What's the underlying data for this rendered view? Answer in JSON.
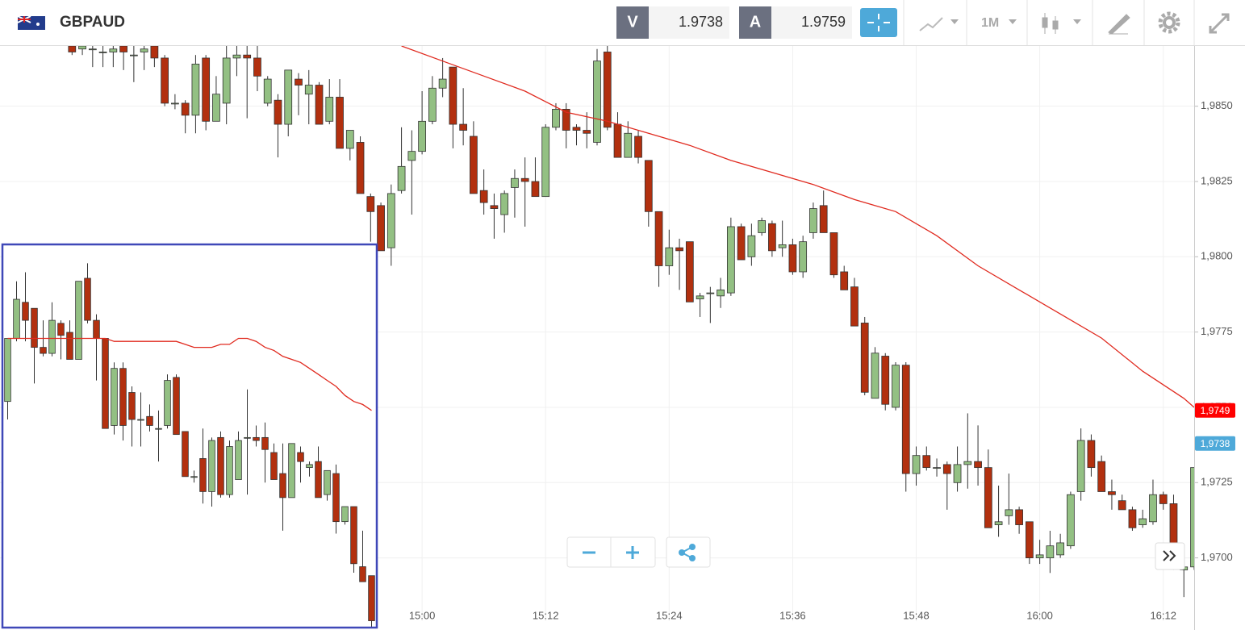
{
  "toolbar": {
    "symbol": "GBPAUD",
    "sell_label": "V",
    "sell_price": 1.9738,
    "buy_label": "A",
    "buy_price": 1.9759,
    "timeframe": "1M"
  },
  "chart_data": [
    {
      "type": "candlestick",
      "x": [
        "14:26",
        "14:27",
        "14:28",
        "14:29",
        "14:30",
        "14:31",
        "14:32",
        "14:33",
        "14:34",
        "14:35",
        "14:36",
        "14:37",
        "14:38",
        "14:39",
        "14:40",
        "14:41",
        "14:42",
        "14:43",
        "14:44",
        "14:45",
        "14:46",
        "14:47",
        "14:48",
        "14:49",
        "14:50",
        "14:51",
        "14:52",
        "14:53",
        "14:54",
        "14:55",
        "14:56",
        "14:57",
        "14:58",
        "14:59",
        "15:00",
        "15:01",
        "15:02",
        "15:03",
        "15:04",
        "15:05",
        "15:06",
        "15:07",
        "15:08",
        "15:09",
        "15:10",
        "15:11",
        "15:12",
        "15:13",
        "15:14",
        "15:15",
        "15:16",
        "15:17",
        "15:18",
        "15:19",
        "15:20",
        "15:21",
        "15:22",
        "15:23",
        "15:24",
        "15:25",
        "15:26",
        "15:27",
        "15:28",
        "15:29",
        "15:30",
        "15:31",
        "15:32",
        "15:33",
        "15:34",
        "15:35",
        "15:36",
        "15:37",
        "15:38",
        "15:39",
        "15:40",
        "15:41",
        "15:42",
        "15:43",
        "15:44",
        "15:45",
        "15:46",
        "15:47",
        "15:48",
        "15:49",
        "15:50",
        "15:51",
        "15:52",
        "15:53",
        "15:54",
        "15:55",
        "15:56",
        "15:57",
        "15:58",
        "15:59",
        "16:00",
        "16:01",
        "16:02",
        "16:03",
        "16:04",
        "16:05",
        "16:06",
        "16:07",
        "16:08",
        "16:09",
        "16:10",
        "16:11",
        "16:12",
        "16:13",
        "16:14",
        "16:15"
      ],
      "open": [
        1.987,
        1.9869,
        1.9869,
        1.9868,
        1.9868,
        1.987,
        1.9867,
        1.9868,
        1.987,
        1.9866,
        1.9851,
        1.9851,
        1.9847,
        1.9866,
        1.9845,
        1.9851,
        1.9866,
        1.9867,
        1.9866,
        1.9851,
        1.9852,
        1.9844,
        1.9859,
        1.9854,
        1.9857,
        1.9845,
        1.9853,
        1.9836,
        1.9838,
        1.982,
        1.9817,
        1.9803,
        1.9822,
        1.9832,
        1.9835,
        1.9845,
        1.9856,
        1.9863,
        1.9844,
        1.984,
        1.9822,
        1.9817,
        1.9814,
        1.9823,
        1.9826,
        1.9825,
        1.982,
        1.9843,
        1.9849,
        1.9843,
        1.9842,
        1.9838,
        1.9868,
        1.9844,
        1.9833,
        1.984,
        1.9832,
        1.9815,
        1.9797,
        1.9803,
        1.9805,
        1.9786,
        1.9788,
        1.9787,
        1.9788,
        1.981,
        1.98,
        1.9808,
        1.9811,
        1.9803,
        1.9804,
        1.9795,
        1.9808,
        1.9817,
        1.9808,
        1.9795,
        1.979,
        1.9778,
        1.9753,
        1.9767,
        1.975,
        1.9764,
        1.9728,
        1.9734,
        1.973,
        1.9731,
        1.9725,
        1.9731,
        1.9732,
        1.973,
        1.9711,
        1.9714,
        1.9716,
        1.9712,
        1.97,
        1.97,
        1.9701,
        1.9704,
        1.9722,
        1.9739,
        1.9732,
        1.9722,
        1.9719,
        1.9716,
        1.9711,
        1.9712,
        1.9721,
        1.9718,
        1.9696,
        1.9697
      ],
      "high": [
        1.9871,
        1.9871,
        1.9871,
        1.9871,
        1.9871,
        1.9871,
        1.987,
        1.987,
        1.9871,
        1.9867,
        1.9854,
        1.9852,
        1.9867,
        1.9867,
        1.986,
        1.987,
        1.987,
        1.987,
        1.987,
        1.986,
        1.9854,
        1.9862,
        1.9861,
        1.9862,
        1.9858,
        1.9859,
        1.9859,
        1.9842,
        1.984,
        1.9821,
        1.9818,
        1.9824,
        1.9843,
        1.9842,
        1.9855,
        1.986,
        1.9866,
        1.9863,
        1.9856,
        1.9845,
        1.9829,
        1.9821,
        1.9822,
        1.9829,
        1.9833,
        1.9833,
        1.9844,
        1.9851,
        1.9851,
        1.9844,
        1.9848,
        1.9869,
        1.987,
        1.9848,
        1.9845,
        1.9842,
        1.9832,
        1.9815,
        1.9809,
        1.9806,
        1.9805,
        1.9788,
        1.979,
        1.9793,
        1.9813,
        1.9811,
        1.9811,
        1.9813,
        1.9812,
        1.9812,
        1.9806,
        1.9807,
        1.9818,
        1.9822,
        1.9808,
        1.9797,
        1.9793,
        1.978,
        1.977,
        1.9768,
        1.9765,
        1.9765,
        1.9737,
        1.9737,
        1.9733,
        1.9732,
        1.9737,
        1.9748,
        1.9744,
        1.9736,
        1.9724,
        1.9728,
        1.9717,
        1.9712,
        1.9706,
        1.9709,
        1.9708,
        1.9722,
        1.9743,
        1.9741,
        1.9734,
        1.9726,
        1.9721,
        1.9717,
        1.9716,
        1.9726,
        1.9722,
        1.9721,
        1.97,
        1.973
      ],
      "low": [
        1.9867,
        1.9867,
        1.9863,
        1.9863,
        1.9863,
        1.9862,
        1.9858,
        1.9862,
        1.9863,
        1.985,
        1.9849,
        1.9841,
        1.9841,
        1.9842,
        1.9845,
        1.9844,
        1.986,
        1.9846,
        1.9855,
        1.985,
        1.9833,
        1.984,
        1.9847,
        1.9844,
        1.9844,
        1.9844,
        1.9836,
        1.9832,
        1.9821,
        1.9805,
        1.9802,
        1.9797,
        1.9821,
        1.9814,
        1.9834,
        1.9844,
        1.9853,
        1.9836,
        1.9837,
        1.9821,
        1.9814,
        1.9806,
        1.9808,
        1.9813,
        1.981,
        1.982,
        1.982,
        1.9842,
        1.9836,
        1.9837,
        1.9836,
        1.9837,
        1.9842,
        1.9833,
        1.9833,
        1.9831,
        1.981,
        1.979,
        1.9794,
        1.9789,
        1.9785,
        1.978,
        1.9778,
        1.9783,
        1.9787,
        1.9799,
        1.9797,
        1.9807,
        1.98,
        1.98,
        1.9794,
        1.9793,
        1.9806,
        1.9808,
        1.9793,
        1.9789,
        1.9777,
        1.9754,
        1.9753,
        1.9749,
        1.9749,
        1.9722,
        1.9724,
        1.9729,
        1.9727,
        1.9716,
        1.9722,
        1.9723,
        1.9724,
        1.971,
        1.9707,
        1.9711,
        1.9708,
        1.9698,
        1.9698,
        1.9695,
        1.97,
        1.9703,
        1.9719,
        1.9727,
        1.9722,
        1.9716,
        1.9716,
        1.9709,
        1.971,
        1.9711,
        1.9716,
        1.9696,
        1.9687,
        1.9696
      ],
      "close": [
        1.9868,
        1.987,
        1.9869,
        1.9868,
        1.9869,
        1.9868,
        1.9867,
        1.9869,
        1.9866,
        1.9851,
        1.9851,
        1.9847,
        1.9864,
        1.9845,
        1.9854,
        1.9866,
        1.9867,
        1.9866,
        1.986,
        1.9859,
        1.9844,
        1.9862,
        1.9857,
        1.9857,
        1.9844,
        1.9853,
        1.9836,
        1.9842,
        1.9821,
        1.9815,
        1.9802,
        1.9821,
        1.983,
        1.9835,
        1.9845,
        1.9856,
        1.9859,
        1.9844,
        1.9842,
        1.9821,
        1.9818,
        1.9816,
        1.9821,
        1.9826,
        1.9825,
        1.982,
        1.9843,
        1.9849,
        1.9842,
        1.9842,
        1.9841,
        1.9865,
        1.9843,
        1.9833,
        1.9841,
        1.9833,
        1.9815,
        1.9797,
        1.9803,
        1.9802,
        1.9785,
        1.9787,
        1.9788,
        1.9789,
        1.981,
        1.9799,
        1.9807,
        1.9812,
        1.9802,
        1.9804,
        1.9795,
        1.9805,
        1.9816,
        1.9808,
        1.9794,
        1.9789,
        1.9777,
        1.9755,
        1.9768,
        1.9751,
        1.9764,
        1.9728,
        1.9734,
        1.973,
        1.973,
        1.9728,
        1.9731,
        1.9732,
        1.973,
        1.971,
        1.9712,
        1.9716,
        1.9711,
        1.97,
        1.9701,
        1.9704,
        1.9705,
        1.9721,
        1.9739,
        1.973,
        1.9722,
        1.9721,
        1.9716,
        1.971,
        1.9713,
        1.9721,
        1.9718,
        1.9697,
        1.9697,
        1.973
      ],
      "up_color": "#93c083",
      "down_color": "#b2300f",
      "ma": {
        "x": [
          "14:58",
          "15:02",
          "15:06",
          "15:10",
          "15:14",
          "15:18",
          "15:22",
          "15:26",
          "15:30",
          "15:34",
          "15:38",
          "15:42",
          "15:46",
          "15:50",
          "15:54",
          "15:58",
          "16:02",
          "16:06",
          "16:10",
          "16:14",
          "16:15"
        ],
        "values": [
          1.987,
          1.9865,
          1.986,
          1.9855,
          1.9848,
          1.9845,
          1.9841,
          1.9837,
          1.9832,
          1.9828,
          1.9824,
          1.9819,
          1.9815,
          1.9807,
          1.9797,
          1.9789,
          1.9781,
          1.9773,
          1.9762,
          1.9753,
          1.975
        ],
        "color": "#e02a1f"
      },
      "xlim": [
        "14:19",
        "16:15"
      ],
      "ylim": [
        1.9679,
        1.987
      ],
      "xticks": [
        "15:00",
        "15:12",
        "15:24",
        "15:36",
        "15:48",
        "16:00",
        "16:12"
      ],
      "yticks": [
        {
          "value": 1.97,
          "label": "1,9700"
        },
        {
          "value": 1.9725,
          "label": "1,9725"
        },
        {
          "value": 1.975,
          "label": "1,9750"
        },
        {
          "value": 1.9775,
          "label": "1,9775"
        },
        {
          "value": 1.98,
          "label": "1,9800"
        },
        {
          "value": 1.9825,
          "label": "1,9825"
        },
        {
          "value": 1.985,
          "label": "1,9850"
        }
      ],
      "grid": true,
      "price_labels": [
        {
          "value": 1.9749,
          "label": "1,9749",
          "color": "#ff0000"
        },
        {
          "value": 1.9738,
          "label": "1,9738",
          "color": "#4ea9d9"
        }
      ]
    },
    {
      "type": "candlestick",
      "open": [
        1.9752,
        1.9773,
        1.9785,
        1.9783,
        1.977,
        1.9768,
        1.9778,
        1.9775,
        1.9766,
        1.9793,
        1.9779,
        1.9773,
        1.9744,
        1.9763,
        1.9755,
        1.9746,
        1.9747,
        1.9743,
        1.9744,
        1.976,
        1.9742,
        1.9727,
        1.9733,
        1.9722,
        1.974,
        1.9721,
        1.9726,
        1.974,
        1.974,
        1.974,
        1.9735,
        1.9728,
        1.972,
        1.9735,
        1.973,
        1.9732,
        1.9721,
        1.9728,
        1.9712,
        1.9717,
        1.9697,
        1.9694
      ],
      "high": [
        1.9773,
        1.9792,
        1.9795,
        1.9783,
        1.9779,
        1.9785,
        1.9779,
        1.9779,
        1.9792,
        1.9798,
        1.9781,
        1.9773,
        1.9765,
        1.9765,
        1.9757,
        1.9755,
        1.9751,
        1.9749,
        1.9761,
        1.9761,
        1.9742,
        1.9729,
        1.9743,
        1.974,
        1.9742,
        1.9739,
        1.9742,
        1.9756,
        1.9744,
        1.9745,
        1.9738,
        1.9738,
        1.9738,
        1.9737,
        1.9732,
        1.9737,
        1.9729,
        1.9731,
        1.9717,
        1.9717,
        1.9709,
        1.9694
      ],
      "low": [
        1.9746,
        1.9772,
        1.9772,
        1.9758,
        1.9767,
        1.9767,
        1.9766,
        1.9766,
        1.9766,
        1.9778,
        1.9759,
        1.9743,
        1.9741,
        1.9739,
        1.9737,
        1.9737,
        1.9742,
        1.9732,
        1.9743,
        1.9741,
        1.9727,
        1.9725,
        1.9718,
        1.9717,
        1.972,
        1.972,
        1.9726,
        1.9721,
        1.9737,
        1.9725,
        1.9726,
        1.9709,
        1.972,
        1.9725,
        1.9727,
        1.972,
        1.9719,
        1.9708,
        1.9711,
        1.9695,
        1.9692,
        1.9677
      ],
      "close": [
        1.9773,
        1.9786,
        1.9779,
        1.977,
        1.9768,
        1.9779,
        1.9774,
        1.9766,
        1.9792,
        1.9779,
        1.9773,
        1.9743,
        1.9763,
        1.9744,
        1.9746,
        1.9746,
        1.9744,
        1.9743,
        1.9759,
        1.9741,
        1.9727,
        1.9727,
        1.9722,
        1.9739,
        1.9721,
        1.9737,
        1.9739,
        1.974,
        1.9739,
        1.9736,
        1.9726,
        1.972,
        1.9738,
        1.9732,
        1.9731,
        1.972,
        1.9729,
        1.9712,
        1.9717,
        1.9698,
        1.9692,
        1.9679
      ],
      "up_color": "#93c083",
      "down_color": "#b2300f",
      "ma": {
        "values": [
          1.9773,
          1.9773,
          1.9773,
          1.9773,
          1.9773,
          1.9773,
          1.9773,
          1.9773,
          1.9773,
          1.9773,
          1.9773,
          1.9773,
          1.9772,
          1.9772,
          1.9772,
          1.9772,
          1.9772,
          1.9772,
          1.9772,
          1.9772,
          1.9771,
          1.977,
          1.977,
          1.977,
          1.9771,
          1.9771,
          1.9773,
          1.9773,
          1.9772,
          1.977,
          1.9769,
          1.9767,
          1.9766,
          1.9765,
          1.9763,
          1.9761,
          1.9759,
          1.9757,
          1.9754,
          1.9752,
          1.9751,
          1.9749
        ],
        "color": "#e02a1f"
      },
      "ylim": [
        1.9677,
        1.9804
      ],
      "frame_color": "#3f48b8"
    }
  ]
}
